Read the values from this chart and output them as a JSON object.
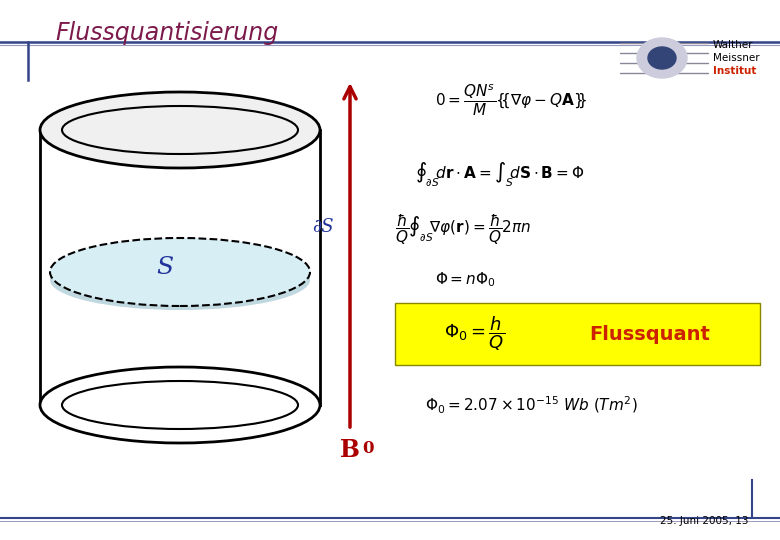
{
  "title": "Flussquantisierung",
  "title_color": "#7b1a4b",
  "background_color": "#ffffff",
  "slide_date": "25. Juni 2005, 13",
  "arrow_color": "#aa0000",
  "fill_color": "#d8eef5",
  "dashed_color": "#333333",
  "label_S": "S",
  "label_dS": "∂S",
  "label_B0": "B",
  "label_S_color": "#223399",
  "label_dS_color": "#223399",
  "label_B0_color": "#aa0000",
  "eq5_label": "Flussquant",
  "yellow_box_color": "#ffff00",
  "red_text_color": "#cc2200",
  "header_line1_color": "#334488",
  "header_line2_color": "#9999bb"
}
